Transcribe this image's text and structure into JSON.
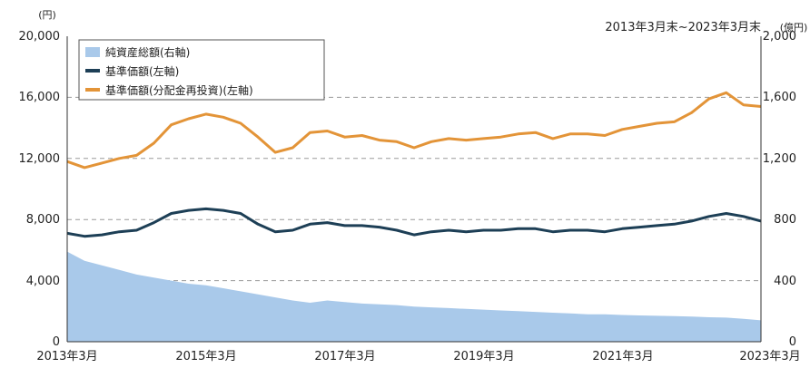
{
  "chart_data": {
    "type": "line",
    "period": "2013年3月末~2023年3月末",
    "y_left": {
      "unit": "(円)",
      "ticks": [
        "0",
        "4,000",
        "8,000",
        "12,000",
        "16,000",
        "20,000"
      ],
      "ylim": [
        0,
        20000
      ]
    },
    "y_right": {
      "unit": "(億円)",
      "ticks": [
        "0",
        "400",
        "800",
        "1,200",
        "1,600",
        "2,000"
      ],
      "ylim": [
        0,
        2000
      ]
    },
    "x_ticks": [
      "2013年3月",
      "2015年3月",
      "2017年3月",
      "2019年3月",
      "2021年3月",
      "2023年3月"
    ],
    "grid": "horizontal dashed",
    "legend_position": "top-left",
    "x": [
      2013.25,
      2013.5,
      2013.75,
      2014.0,
      2014.25,
      2014.5,
      2014.75,
      2015.0,
      2015.25,
      2015.5,
      2015.75,
      2016.0,
      2016.25,
      2016.5,
      2016.75,
      2017.0,
      2017.25,
      2017.5,
      2017.75,
      2018.0,
      2018.25,
      2018.5,
      2018.75,
      2019.0,
      2019.25,
      2019.5,
      2019.75,
      2020.0,
      2020.25,
      2020.5,
      2020.75,
      2021.0,
      2021.25,
      2021.5,
      2021.75,
      2022.0,
      2022.25,
      2022.5,
      2022.75,
      2023.0,
      2023.25
    ],
    "series": [
      {
        "name": "純資産総額(右軸)",
        "type": "area",
        "axis": "right",
        "color": "#a9c9ea",
        "values": [
          590,
          530,
          500,
          470,
          440,
          420,
          400,
          380,
          370,
          350,
          330,
          310,
          290,
          270,
          255,
          270,
          260,
          250,
          245,
          240,
          230,
          225,
          220,
          215,
          210,
          205,
          200,
          195,
          190,
          185,
          180,
          180,
          175,
          172,
          170,
          168,
          165,
          160,
          158,
          150,
          140
        ]
      },
      {
        "name": "基準価額(左軸)",
        "type": "line",
        "axis": "left",
        "color": "#1d3f56",
        "values": [
          7100,
          6900,
          7000,
          7200,
          7300,
          7800,
          8400,
          8600,
          8700,
          8600,
          8400,
          7700,
          7200,
          7300,
          7700,
          7800,
          7600,
          7600,
          7500,
          7300,
          7000,
          7200,
          7300,
          7200,
          7300,
          7300,
          7400,
          7400,
          7200,
          7300,
          7300,
          7200,
          7400,
          7500,
          7600,
          7700,
          7900,
          8200,
          8400,
          8200,
          7900
        ]
      },
      {
        "name": "基準価額(分配金再投資)(左軸)",
        "type": "line",
        "axis": "left",
        "color": "#e39438",
        "values": [
          11800,
          11400,
          11700,
          12000,
          12200,
          13000,
          14200,
          14600,
          14900,
          14700,
          14300,
          13400,
          12400,
          12700,
          13700,
          13800,
          13400,
          13500,
          13200,
          13100,
          12700,
          13100,
          13300,
          13200,
          13300,
          13400,
          13600,
          13700,
          13300,
          13600,
          13600,
          13500,
          13900,
          14100,
          14300,
          14400,
          15000,
          15900,
          16300,
          15500,
          15400
        ]
      }
    ]
  }
}
